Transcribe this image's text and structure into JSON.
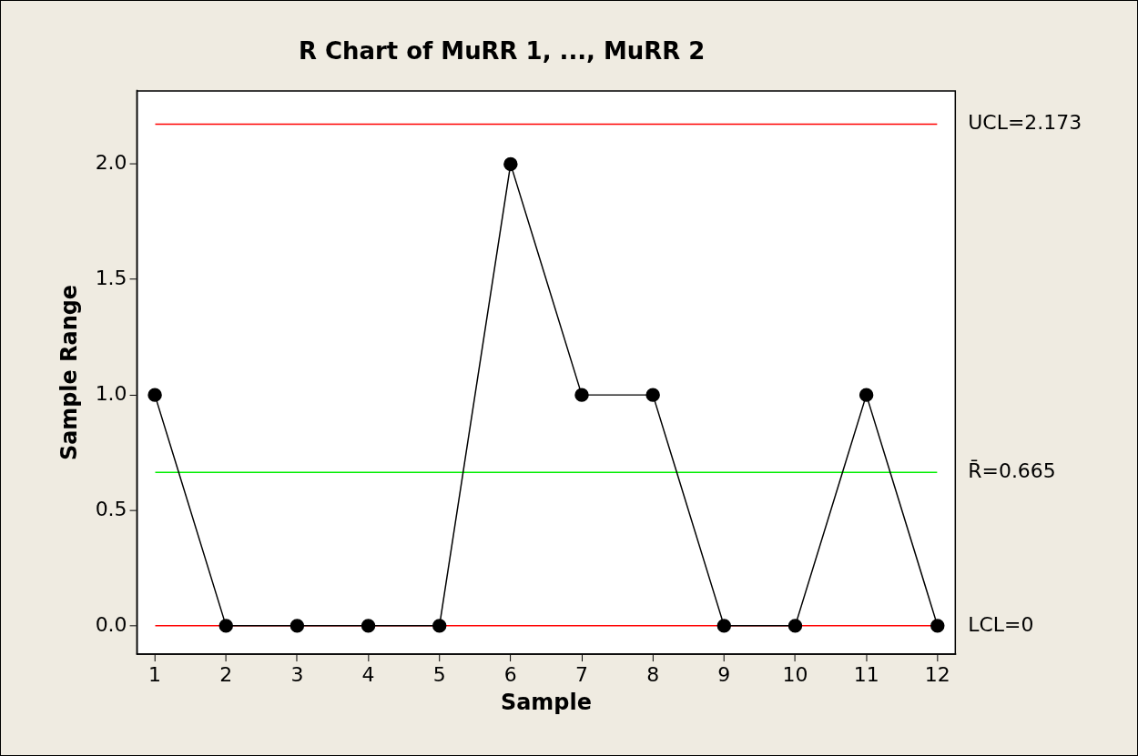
{
  "chart_data": {
    "type": "line",
    "title": "R Chart of MuRR 1, ..., MuRR 2",
    "xlabel": "Sample",
    "ylabel": "Sample Range",
    "x": [
      1,
      2,
      3,
      4,
      5,
      6,
      7,
      8,
      9,
      10,
      11,
      12
    ],
    "series": [
      {
        "color": "#000000",
        "values": [
          1,
          0,
          0,
          0,
          0,
          2,
          1,
          1,
          0,
          0,
          1,
          0
        ]
      }
    ],
    "xlim": [
      0.75,
      12.25
    ],
    "xticks": [
      1,
      2,
      3,
      4,
      5,
      6,
      7,
      8,
      9,
      10,
      11,
      12
    ],
    "ylim": [
      -0.123,
      2.317
    ],
    "yticks": [
      {
        "value": 0,
        "label": "0.0"
      },
      0.5,
      {
        "value": 1,
        "label": "1.0"
      },
      1.5,
      {
        "value": 2,
        "label": "2.0"
      }
    ],
    "ref_lines": [
      {
        "axis": "y",
        "value": 2.173,
        "label": "UCL=2.173",
        "color": "#ff0000"
      },
      {
        "axis": "y",
        "value": 0.665,
        "label": "R̄=0.665",
        "color": "#00ee00"
      },
      {
        "axis": "y",
        "value": 0,
        "label": "LCL=0",
        "color": "#ff0000"
      }
    ],
    "marker": "circle",
    "line_style": "solid",
    "grid": false,
    "legend": false
  }
}
